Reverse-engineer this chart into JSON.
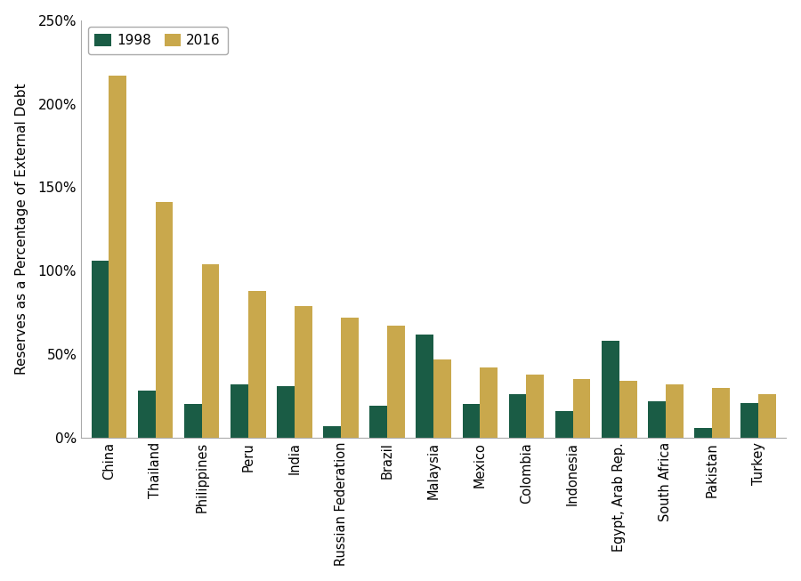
{
  "categories": [
    "China",
    "Thailand",
    "Philippines",
    "Peru",
    "India",
    "Russian Federation",
    "Brazil",
    "Malaysia",
    "Mexico",
    "Colombia",
    "Indonesia",
    "Egypt, Arab Rep.",
    "South Africa",
    "Pakistan",
    "Turkey"
  ],
  "values_1998": [
    106,
    28,
    20,
    32,
    31,
    7,
    19,
    62,
    20,
    26,
    16,
    58,
    22,
    6,
    21
  ],
  "values_2016": [
    217,
    141,
    104,
    88,
    79,
    72,
    67,
    47,
    42,
    38,
    35,
    34,
    32,
    30,
    26
  ],
  "color_1998": "#1a5c45",
  "color_2016": "#c9a84c",
  "ylabel": "Reserves as a Percentage of External Debt",
  "ylim": [
    0,
    250
  ],
  "yticks": [
    0,
    50,
    100,
    150,
    200,
    250
  ],
  "ytick_labels": [
    "0%",
    "50%",
    "100%",
    "150%",
    "200%",
    "250%"
  ],
  "legend_1998": "1998",
  "legend_2016": "2016",
  "bar_width": 0.38,
  "background_color": "#ffffff"
}
